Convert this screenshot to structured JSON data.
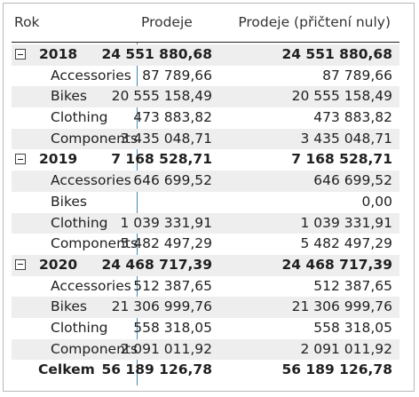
{
  "header": {
    "col_rok": "Rok",
    "col_prodeje": "Prodeje",
    "col_prodeje_nuly": "Prodeje (přičtení nuly)"
  },
  "groups": [
    {
      "year": "2018",
      "prodeje": "24 551 880,68",
      "prodeje_nuly": "24 551 880,68",
      "items": [
        {
          "label": "Accessories",
          "prodeje": "87 789,66",
          "prodeje_nuly": "87 789,66"
        },
        {
          "label": "Bikes",
          "prodeje": "20 555 158,49",
          "prodeje_nuly": "20 555 158,49"
        },
        {
          "label": "Clothing",
          "prodeje": "473 883,82",
          "prodeje_nuly": "473 883,82"
        },
        {
          "label": "Components",
          "prodeje": "3 435 048,71",
          "prodeje_nuly": "3 435 048,71"
        }
      ]
    },
    {
      "year": "2019",
      "prodeje": "7 168 528,71",
      "prodeje_nuly": "7 168 528,71",
      "items": [
        {
          "label": "Accessories",
          "prodeje": "646 699,52",
          "prodeje_nuly": "646 699,52"
        },
        {
          "label": "Bikes",
          "prodeje": "",
          "prodeje_nuly": "0,00"
        },
        {
          "label": "Clothing",
          "prodeje": "1 039 331,91",
          "prodeje_nuly": "1 039 331,91"
        },
        {
          "label": "Components",
          "prodeje": "5 482 497,29",
          "prodeje_nuly": "5 482 497,29"
        }
      ]
    },
    {
      "year": "2020",
      "prodeje": "24 468 717,39",
      "prodeje_nuly": "24 468 717,39",
      "items": [
        {
          "label": "Accessories",
          "prodeje": "512 387,65",
          "prodeje_nuly": "512 387,65"
        },
        {
          "label": "Bikes",
          "prodeje": "21 306 999,76",
          "prodeje_nuly": "21 306 999,76"
        },
        {
          "label": "Clothing",
          "prodeje": "558 318,05",
          "prodeje_nuly": "558 318,05"
        },
        {
          "label": "Components",
          "prodeje": "2 091 011,92",
          "prodeje_nuly": "2 091 011,92"
        }
      ]
    }
  ],
  "total": {
    "label": "Celkem",
    "prodeje": "56 189 126,78",
    "prodeje_nuly": "56 189 126,78"
  }
}
